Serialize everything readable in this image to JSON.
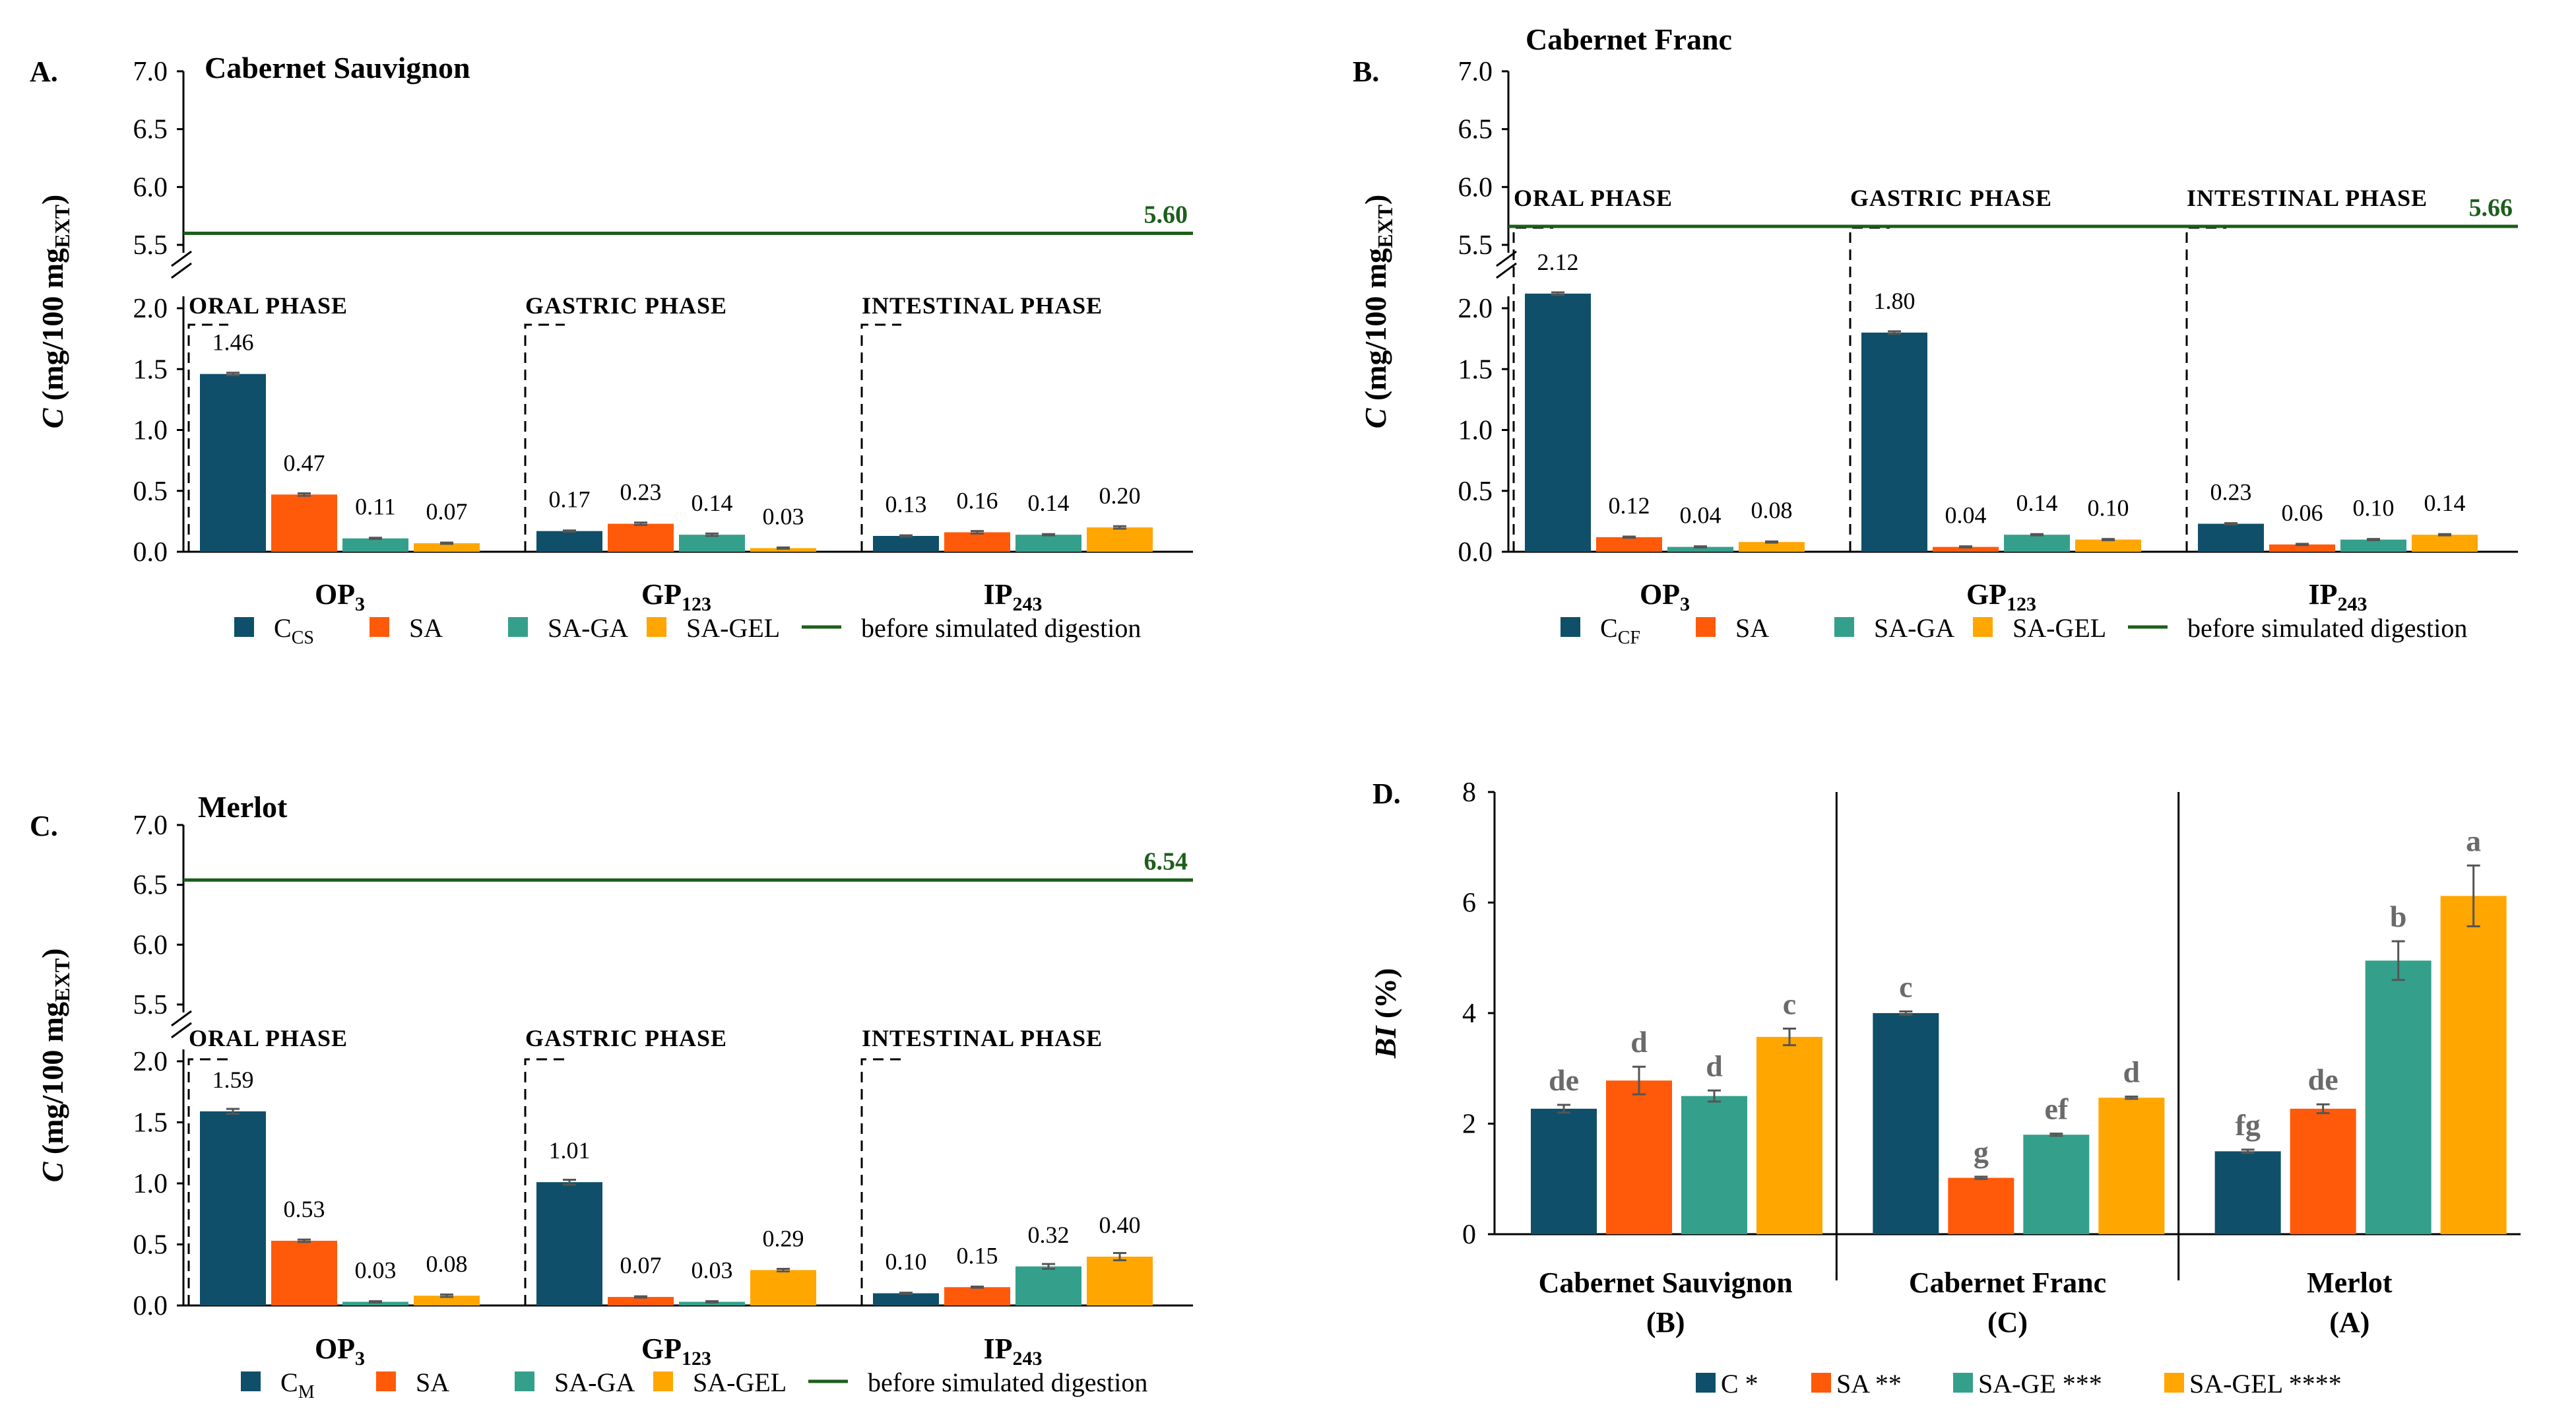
{
  "colors": {
    "navy": "#0f4f69",
    "orange": "#ff5a0a",
    "teal": "#34a08c",
    "gold": "#ffa600",
    "ref": "#1c5e1a",
    "errbar": "#555555",
    "letter": "#6a6a6a"
  },
  "chart_data": [
    {
      "id": "A",
      "type": "bar",
      "panel_label": "A.",
      "title": "Cabernet Sauvignon",
      "ylabel": "C (mg/100 mg_EXT)",
      "ylim_lower": [
        0,
        2.0
      ],
      "ylim_upper": [
        5.5,
        7.0
      ],
      "yticks_lower": [
        "0.0",
        "0.5",
        "1.0",
        "1.5",
        "2.0"
      ],
      "yticks_upper": [
        "5.5",
        "6.0",
        "6.5",
        "7.0"
      ],
      "categories": [
        {
          "main": "OP",
          "sub": "3"
        },
        {
          "main": "GP",
          "sub": "123"
        },
        {
          "main": "IP",
          "sub": "243"
        }
      ],
      "phases": [
        "ORAL PHASE",
        "GASTRIC PHASE",
        "INTESTINAL PHASE"
      ],
      "series": [
        {
          "name": "C",
          "sub": "CS",
          "color": "navy",
          "values": [
            1.46,
            0.17,
            0.13
          ],
          "errors": [
            0.01,
            0.005,
            0.005
          ],
          "labels": [
            "1.46",
            "0.17",
            "0.13"
          ]
        },
        {
          "name": "SA",
          "sub": "",
          "color": "orange",
          "values": [
            0.47,
            0.23,
            0.16
          ],
          "errors": [
            0.01,
            0.01,
            0.01
          ],
          "labels": [
            "0.47",
            "0.23",
            "0.16"
          ]
        },
        {
          "name": "SA-GA",
          "sub": "",
          "color": "teal",
          "values": [
            0.11,
            0.14,
            0.14
          ],
          "errors": [
            0.005,
            0.01,
            0.005
          ],
          "labels": [
            "0.11",
            "0.14",
            "0.14"
          ]
        },
        {
          "name": "SA-GEL",
          "sub": "",
          "color": "gold",
          "values": [
            0.07,
            0.03,
            0.2
          ],
          "errors": [
            0.005,
            0.005,
            0.01
          ],
          "labels": [
            "0.07",
            "0.03",
            "0.20"
          ]
        }
      ],
      "reference": {
        "value": 5.6,
        "label": "5.60",
        "name": "before simulated digestion"
      }
    },
    {
      "id": "B",
      "type": "bar",
      "panel_label": "B.",
      "title": "Cabernet Franc",
      "ylabel": "C (mg/100 mg_EXT)",
      "ylim_lower": [
        0,
        2.0
      ],
      "ylim_upper": [
        5.5,
        7.0
      ],
      "yticks_lower": [
        "0.0",
        "0.5",
        "1.0",
        "1.5",
        "2.0"
      ],
      "yticks_upper": [
        "5.5",
        "6.0",
        "6.5",
        "7.0"
      ],
      "categories": [
        {
          "main": "OP",
          "sub": "3"
        },
        {
          "main": "GP",
          "sub": "123"
        },
        {
          "main": "IP",
          "sub": "243"
        }
      ],
      "phases": [
        "ORAL PHASE",
        "GASTRIC PHASE",
        "INTESTINAL PHASE"
      ],
      "series": [
        {
          "name": "C",
          "sub": "CF",
          "color": "navy",
          "values": [
            2.12,
            1.8,
            0.23
          ],
          "errors": [
            0.01,
            0.01,
            0.005
          ],
          "labels": [
            "2.12",
            "1.80",
            "0.23"
          ]
        },
        {
          "name": "SA",
          "sub": "",
          "color": "orange",
          "values": [
            0.12,
            0.04,
            0.06
          ],
          "errors": [
            0.005,
            0.005,
            0.005
          ],
          "labels": [
            "0.12",
            "0.04",
            "0.06"
          ]
        },
        {
          "name": "SA-GA",
          "sub": "",
          "color": "teal",
          "values": [
            0.04,
            0.14,
            0.1
          ],
          "errors": [
            0.005,
            0.005,
            0.005
          ],
          "labels": [
            "0.04",
            "0.14",
            "0.10"
          ]
        },
        {
          "name": "SA-GEL",
          "sub": "",
          "color": "gold",
          "values": [
            0.08,
            0.1,
            0.14
          ],
          "errors": [
            0.005,
            0.005,
            0.005
          ],
          "labels": [
            "0.08",
            "0.10",
            "0.14"
          ]
        }
      ],
      "reference": {
        "value": 5.66,
        "label": "5.66",
        "name": "before simulated digestion"
      }
    },
    {
      "id": "C",
      "type": "bar",
      "panel_label": "C.",
      "title": "Merlot",
      "ylabel": "C (mg/100 mg_EXT)",
      "ylim_lower": [
        0,
        2.0
      ],
      "ylim_upper": [
        5.5,
        7.0
      ],
      "yticks_lower": [
        "0.0",
        "0.5",
        "1.0",
        "1.5",
        "2.0"
      ],
      "yticks_upper": [
        "5.5",
        "6.0",
        "6.5",
        "7.0"
      ],
      "categories": [
        {
          "main": "OP",
          "sub": "3"
        },
        {
          "main": "GP",
          "sub": "123"
        },
        {
          "main": "IP",
          "sub": "243"
        }
      ],
      "phases": [
        "ORAL PHASE",
        "GASTRIC PHASE",
        "INTESTINAL PHASE"
      ],
      "series": [
        {
          "name": "C",
          "sub": "M",
          "color": "navy",
          "values": [
            1.59,
            1.01,
            0.1
          ],
          "errors": [
            0.02,
            0.02,
            0.005
          ],
          "labels": [
            "1.59",
            "1.01",
            "0.10"
          ]
        },
        {
          "name": "SA",
          "sub": "",
          "color": "orange",
          "values": [
            0.53,
            0.07,
            0.15
          ],
          "errors": [
            0.01,
            0.005,
            0.005
          ],
          "labels": [
            "0.53",
            "0.07",
            "0.15"
          ]
        },
        {
          "name": "SA-GA",
          "sub": "",
          "color": "teal",
          "values": [
            0.03,
            0.03,
            0.32
          ],
          "errors": [
            0.005,
            0.005,
            0.02
          ],
          "labels": [
            "0.03",
            "0.03",
            "0.32"
          ]
        },
        {
          "name": "SA-GEL",
          "sub": "",
          "color": "gold",
          "values": [
            0.08,
            0.29,
            0.4
          ],
          "errors": [
            0.01,
            0.01,
            0.03
          ],
          "labels": [
            "0.08",
            "0.29",
            "0.40"
          ]
        }
      ],
      "reference": {
        "value": 6.54,
        "label": "6.54",
        "name": "before simulated digestion"
      }
    },
    {
      "id": "D",
      "type": "bar",
      "panel_label": "D.",
      "title": "",
      "ylabel": "BI (%)",
      "ylim": [
        0,
        8
      ],
      "yticks": [
        "0",
        "2",
        "4",
        "6",
        "8"
      ],
      "categories": [
        {
          "main": "Cabernet Sauvignon",
          "sub": "(B)"
        },
        {
          "main": "Cabernet Franc",
          "sub": "(C)"
        },
        {
          "main": "Merlot",
          "sub": "(A)"
        }
      ],
      "series": [
        {
          "name": "C *",
          "color": "navy",
          "values": [
            2.27,
            4.0,
            1.5
          ],
          "errors": [
            0.07,
            0.03,
            0.03
          ],
          "letters": [
            "de",
            "c",
            "fg"
          ]
        },
        {
          "name": "SA **",
          "color": "orange",
          "values": [
            2.78,
            1.02,
            2.27
          ],
          "errors": [
            0.25,
            0.02,
            0.08
          ],
          "letters": [
            "d",
            "g",
            "de"
          ]
        },
        {
          "name": "SA-GE ***",
          "color": "teal",
          "values": [
            2.5,
            1.8,
            4.95
          ],
          "errors": [
            0.1,
            0.02,
            0.35
          ],
          "letters": [
            "d",
            "ef",
            "b"
          ]
        },
        {
          "name": "SA-GEL ****",
          "color": "gold",
          "values": [
            3.57,
            2.47,
            6.12
          ],
          "errors": [
            0.15,
            0.02,
            0.55
          ],
          "letters": [
            "c",
            "d",
            "a"
          ]
        }
      ]
    }
  ]
}
